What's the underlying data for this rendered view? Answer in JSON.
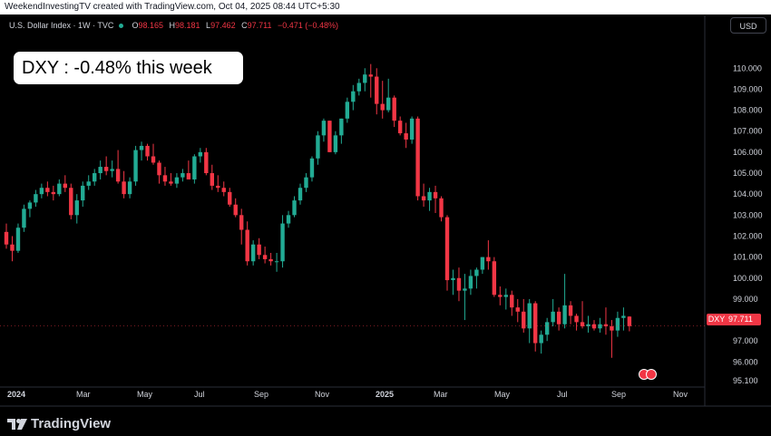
{
  "header": {
    "attribution": "WeekendInvestingTV created with TradingView.com, Oct 04, 2025 08:44 UTC+5:30"
  },
  "symbol_bar": {
    "name": "U.S. Dollar Index",
    "interval": "1W",
    "exchange": "TVC",
    "open_label": "O",
    "open": "98.165",
    "high_label": "H",
    "high": "98.181",
    "low_label": "L",
    "low": "97.462",
    "close_label": "C",
    "close": "97.711",
    "change": "−0.471 (−0.48%)"
  },
  "callout": {
    "text": "DXY : -0.48% this week"
  },
  "currency_button": "USD",
  "last_price_tag": {
    "symbol": "DXY",
    "value": "97.711"
  },
  "footer": {
    "logo_text": "TradingView"
  },
  "icons": {
    "logo": "tradingview-logo-icon",
    "events": "us-flag-event-icon"
  },
  "colors": {
    "up": "#22ab94",
    "down": "#f23645",
    "background": "#000000",
    "axis_text": "#d1d4dc"
  },
  "chart_data": {
    "type": "candlestick",
    "interval": "1W",
    "ylim": [
      94.9,
      110.6
    ],
    "y_ticks": [
      "95.100",
      "96.000",
      "97.000",
      "98.000",
      "99.000",
      "100.000",
      "101.000",
      "102.000",
      "103.000",
      "104.000",
      "105.000",
      "106.000",
      "107.000",
      "108.000",
      "109.000",
      "110.000"
    ],
    "x_tick_labels": [
      "2024",
      "Mar",
      "May",
      "Jul",
      "Sep",
      "Nov",
      "2025",
      "Mar",
      "May",
      "Jul",
      "Sep",
      "Nov"
    ],
    "grid": false,
    "candles": [
      [
        102.2,
        102.6,
        101.4,
        101.6
      ],
      [
        101.6,
        102.0,
        100.8,
        101.3
      ],
      [
        101.3,
        102.6,
        101.2,
        102.4
      ],
      [
        102.4,
        103.5,
        102.2,
        103.3
      ],
      [
        103.3,
        103.7,
        102.9,
        103.6
      ],
      [
        103.6,
        104.2,
        103.4,
        104.0
      ],
      [
        104.0,
        104.5,
        103.8,
        104.3
      ],
      [
        104.3,
        104.6,
        103.9,
        104.1
      ],
      [
        104.1,
        104.4,
        103.7,
        104.0
      ],
      [
        104.0,
        104.7,
        103.9,
        104.5
      ],
      [
        104.5,
        104.9,
        104.1,
        104.3
      ],
      [
        104.3,
        104.5,
        102.8,
        103.0
      ],
      [
        103.0,
        104.0,
        102.6,
        103.7
      ],
      [
        103.7,
        104.6,
        103.4,
        104.4
      ],
      [
        104.4,
        104.9,
        104.2,
        104.6
      ],
      [
        104.6,
        105.2,
        104.4,
        105.0
      ],
      [
        105.0,
        105.6,
        104.7,
        105.3
      ],
      [
        105.3,
        105.8,
        104.9,
        105.1
      ],
      [
        105.1,
        105.6,
        104.8,
        105.2
      ],
      [
        105.2,
        106.1,
        104.5,
        104.6
      ],
      [
        104.6,
        105.1,
        103.8,
        104.0
      ],
      [
        104.0,
        104.8,
        103.8,
        104.6
      ],
      [
        104.6,
        106.3,
        104.4,
        106.1
      ],
      [
        106.1,
        106.5,
        105.6,
        106.3
      ],
      [
        106.3,
        106.4,
        105.6,
        105.8
      ],
      [
        105.8,
        106.4,
        105.4,
        105.5
      ],
      [
        105.5,
        105.6,
        104.5,
        104.9
      ],
      [
        104.9,
        105.3,
        104.4,
        104.6
      ],
      [
        104.6,
        105.0,
        104.4,
        104.5
      ],
      [
        104.5,
        105.0,
        104.3,
        104.8
      ],
      [
        104.8,
        105.2,
        104.6,
        105.0
      ],
      [
        105.0,
        105.6,
        104.8,
        104.7
      ],
      [
        104.7,
        105.9,
        104.5,
        105.8
      ],
      [
        105.8,
        106.2,
        105.5,
        106.0
      ],
      [
        106.0,
        106.2,
        104.9,
        105.0
      ],
      [
        105.0,
        105.4,
        104.2,
        104.4
      ],
      [
        104.4,
        104.9,
        104.1,
        104.3
      ],
      [
        104.3,
        104.6,
        103.9,
        104.1
      ],
      [
        104.1,
        104.3,
        103.4,
        103.5
      ],
      [
        103.5,
        103.8,
        102.9,
        103.0
      ],
      [
        103.0,
        103.3,
        101.6,
        102.3
      ],
      [
        102.3,
        102.7,
        100.6,
        100.8
      ],
      [
        100.8,
        101.8,
        100.6,
        101.6
      ],
      [
        101.6,
        101.9,
        100.9,
        101.1
      ],
      [
        101.1,
        101.5,
        100.7,
        100.9
      ],
      [
        100.9,
        101.2,
        100.6,
        100.8
      ],
      [
        100.8,
        101.2,
        100.3,
        100.8
      ],
      [
        100.8,
        103.0,
        100.5,
        102.6
      ],
      [
        102.6,
        103.2,
        102.4,
        103.0
      ],
      [
        103.0,
        103.9,
        102.9,
        103.7
      ],
      [
        103.7,
        104.5,
        103.5,
        104.3
      ],
      [
        104.3,
        105.0,
        104.1,
        104.8
      ],
      [
        104.8,
        105.8,
        104.6,
        105.7
      ],
      [
        105.7,
        107.0,
        105.4,
        106.8
      ],
      [
        106.8,
        107.6,
        106.5,
        107.5
      ],
      [
        107.5,
        107.5,
        106.0,
        106.0
      ],
      [
        106.0,
        107.0,
        105.9,
        106.8
      ],
      [
        106.8,
        107.6,
        106.4,
        107.6
      ],
      [
        107.6,
        108.6,
        107.4,
        108.4
      ],
      [
        108.4,
        109.2,
        108.0,
        108.9
      ],
      [
        108.9,
        109.5,
        108.7,
        109.3
      ],
      [
        109.3,
        110.0,
        108.9,
        109.7
      ],
      [
        109.7,
        110.2,
        108.6,
        109.6
      ],
      [
        109.6,
        110.0,
        107.8,
        108.3
      ],
      [
        108.3,
        109.4,
        107.6,
        108.0
      ],
      [
        108.0,
        109.5,
        107.9,
        108.6
      ],
      [
        108.6,
        108.7,
        107.2,
        107.5
      ],
      [
        107.5,
        107.7,
        106.8,
        106.9
      ],
      [
        106.9,
        107.4,
        106.2,
        106.6
      ],
      [
        106.6,
        107.7,
        106.4,
        107.6
      ],
      [
        107.6,
        107.7,
        103.7,
        103.9
      ],
      [
        103.9,
        104.5,
        103.4,
        103.7
      ],
      [
        103.7,
        104.3,
        103.2,
        104.1
      ],
      [
        104.1,
        104.4,
        103.1,
        103.8
      ],
      [
        103.8,
        103.9,
        102.7,
        102.9
      ],
      [
        102.9,
        103.0,
        99.4,
        99.9
      ],
      [
        99.9,
        100.4,
        99.2,
        100.0
      ],
      [
        100.0,
        100.5,
        98.9,
        99.4
      ],
      [
        99.4,
        100.2,
        98.0,
        99.5
      ],
      [
        99.5,
        100.4,
        99.2,
        100.1
      ],
      [
        100.1,
        100.5,
        99.5,
        100.4
      ],
      [
        100.4,
        101.0,
        100.2,
        101.0
      ],
      [
        101.0,
        101.8,
        100.4,
        100.8
      ],
      [
        100.8,
        101.0,
        99.1,
        99.2
      ],
      [
        99.2,
        99.6,
        98.7,
        99.1
      ],
      [
        99.1,
        99.5,
        98.5,
        99.2
      ],
      [
        99.2,
        99.4,
        98.2,
        98.6
      ],
      [
        98.6,
        99.0,
        97.9,
        98.4
      ],
      [
        98.4,
        99.0,
        97.4,
        97.6
      ],
      [
        97.6,
        99.0,
        96.9,
        98.8
      ],
      [
        98.8,
        98.9,
        96.5,
        96.9
      ],
      [
        96.9,
        97.5,
        96.4,
        97.3
      ],
      [
        97.3,
        98.1,
        97.0,
        97.9
      ],
      [
        97.9,
        99.0,
        97.7,
        98.4
      ],
      [
        98.4,
        98.6,
        97.5,
        97.8
      ],
      [
        97.8,
        100.2,
        97.6,
        98.7
      ],
      [
        98.7,
        98.9,
        97.8,
        98.2
      ],
      [
        98.2,
        98.3,
        97.5,
        97.9
      ],
      [
        97.9,
        98.9,
        97.6,
        97.7
      ],
      [
        97.7,
        98.2,
        97.4,
        97.8
      ],
      [
        97.8,
        98.0,
        97.5,
        97.6
      ],
      [
        97.6,
        98.1,
        97.4,
        97.8
      ],
      [
        97.8,
        98.6,
        97.3,
        97.7
      ],
      [
        97.7,
        98.0,
        96.2,
        97.5
      ],
      [
        97.5,
        98.4,
        97.2,
        98.1
      ],
      [
        98.1,
        98.6,
        97.5,
        98.2
      ],
      [
        98.165,
        98.181,
        97.462,
        97.711
      ]
    ]
  }
}
